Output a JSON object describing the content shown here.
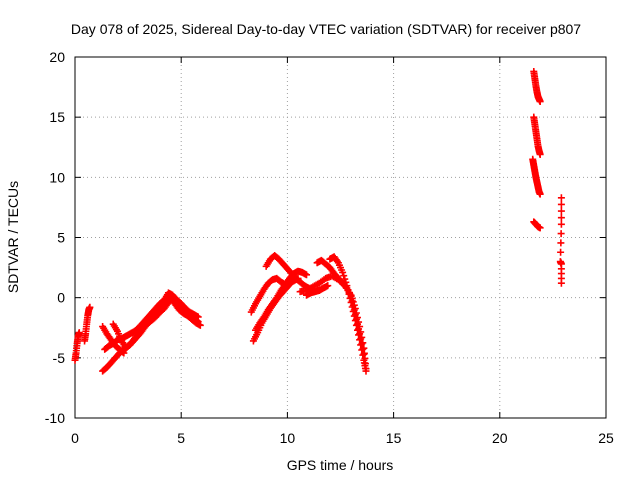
{
  "chart_data": {
    "type": "scatter",
    "title": "Day 078 of 2025, Sidereal Day-to-day VTEC variation (SDTVAR) for receiver p807",
    "xlabel": "GPS time / hours",
    "ylabel": "SDTVAR / TECUs",
    "xlim": [
      0,
      25
    ],
    "ylim": [
      -10,
      20
    ],
    "xticks": [
      "0",
      "5",
      "10",
      "15",
      "20",
      "25"
    ],
    "yticks": [
      "-10",
      "-5",
      "0",
      "5",
      "10",
      "15",
      "20"
    ],
    "xtick_values": [
      0,
      5,
      10,
      15,
      20,
      25
    ],
    "ytick_values": [
      -10,
      -5,
      0,
      5,
      10,
      15,
      20
    ],
    "grid": true,
    "marker_color": "#ff0000",
    "marker": "plus",
    "series": [
      {
        "name": "track-1",
        "points": [
          [
            0.0,
            -5.2
          ],
          [
            0.05,
            -4.6
          ],
          [
            0.1,
            -3.8
          ],
          [
            0.15,
            -3.2
          ],
          [
            0.2,
            -2.9
          ]
        ]
      },
      {
        "name": "track-2",
        "points": [
          [
            0.45,
            -3.6
          ],
          [
            0.5,
            -3.0
          ],
          [
            0.55,
            -2.2
          ],
          [
            0.6,
            -1.5
          ],
          [
            0.65,
            -1.0
          ],
          [
            0.7,
            -0.8
          ]
        ]
      },
      {
        "name": "track-3",
        "points": [
          [
            1.3,
            -6.1
          ],
          [
            1.5,
            -5.8
          ],
          [
            1.7,
            -5.4
          ],
          [
            1.9,
            -5.0
          ],
          [
            2.1,
            -4.6
          ],
          [
            2.3,
            -4.3
          ],
          [
            2.5,
            -4.0
          ],
          [
            2.7,
            -3.7
          ],
          [
            2.9,
            -3.3
          ],
          [
            3.1,
            -2.9
          ],
          [
            3.3,
            -2.4
          ],
          [
            3.5,
            -1.9
          ],
          [
            3.7,
            -1.4
          ],
          [
            3.9,
            -1.0
          ],
          [
            4.1,
            -0.7
          ],
          [
            4.3,
            -0.3
          ],
          [
            4.5,
            0.1
          ],
          [
            4.7,
            -0.5
          ],
          [
            4.9,
            -1.0
          ],
          [
            5.1,
            -1.3
          ],
          [
            5.3,
            -1.5
          ],
          [
            5.5,
            -1.8
          ],
          [
            5.7,
            -2.1
          ],
          [
            5.9,
            -2.3
          ]
        ]
      },
      {
        "name": "track-4",
        "points": [
          [
            1.4,
            -4.3
          ],
          [
            1.6,
            -4.0
          ],
          [
            1.8,
            -3.8
          ],
          [
            2.0,
            -3.5
          ],
          [
            2.2,
            -3.4
          ],
          [
            2.4,
            -3.2
          ],
          [
            2.6,
            -3.0
          ],
          [
            2.8,
            -2.8
          ],
          [
            3.0,
            -2.5
          ],
          [
            3.2,
            -2.1
          ],
          [
            3.4,
            -1.7
          ],
          [
            3.6,
            -1.3
          ],
          [
            3.8,
            -0.9
          ],
          [
            4.0,
            -0.5
          ],
          [
            4.2,
            -0.2
          ],
          [
            4.4,
            0.4
          ],
          [
            4.6,
            0.2
          ],
          [
            4.8,
            -0.2
          ],
          [
            5.0,
            -0.5
          ],
          [
            5.2,
            -0.9
          ],
          [
            5.4,
            -1.2
          ],
          [
            5.6,
            -1.4
          ],
          [
            5.8,
            -1.6
          ]
        ]
      },
      {
        "name": "track-5",
        "points": [
          [
            1.8,
            -2.2
          ],
          [
            2.0,
            -2.8
          ],
          [
            2.2,
            -3.6
          ],
          [
            2.4,
            -4.2
          ],
          [
            2.6,
            -3.9
          ],
          [
            2.8,
            -3.4
          ],
          [
            3.0,
            -2.9
          ],
          [
            3.2,
            -2.5
          ],
          [
            3.4,
            -2.2
          ],
          [
            3.6,
            -1.9
          ],
          [
            3.8,
            -1.6
          ],
          [
            4.0,
            -1.2
          ],
          [
            4.2,
            -0.9
          ],
          [
            4.4,
            -0.4
          ],
          [
            4.6,
            0.0
          ],
          [
            4.8,
            -0.4
          ],
          [
            5.0,
            -0.8
          ],
          [
            5.2,
            -1.1
          ],
          [
            5.4,
            -1.3
          ],
          [
            5.6,
            -1.7
          ],
          [
            5.8,
            -2.0
          ]
        ]
      },
      {
        "name": "track-6",
        "points": [
          [
            1.3,
            -2.4
          ],
          [
            1.5,
            -3.0
          ],
          [
            1.7,
            -3.5
          ],
          [
            1.9,
            -4.0
          ],
          [
            2.1,
            -4.3
          ],
          [
            2.3,
            -4.6
          ]
        ]
      },
      {
        "name": "track-7",
        "points": [
          [
            8.3,
            -1.2
          ],
          [
            8.5,
            -0.5
          ],
          [
            8.7,
            0.1
          ],
          [
            8.9,
            0.7
          ],
          [
            9.1,
            1.2
          ],
          [
            9.3,
            1.5
          ],
          [
            9.5,
            1.6
          ],
          [
            9.7,
            1.3
          ],
          [
            9.9,
            1.1
          ],
          [
            10.1,
            1.2
          ],
          [
            10.3,
            1.4
          ],
          [
            10.5,
            1.6
          ]
        ]
      },
      {
        "name": "track-8",
        "points": [
          [
            8.4,
            -3.6
          ],
          [
            8.6,
            -2.9
          ],
          [
            8.8,
            -2.1
          ],
          [
            9.0,
            -1.5
          ],
          [
            9.2,
            -0.9
          ],
          [
            9.4,
            -0.4
          ],
          [
            9.6,
            0.1
          ],
          [
            9.8,
            0.5
          ],
          [
            10.0,
            0.9
          ],
          [
            10.2,
            1.3
          ],
          [
            10.4,
            1.6
          ]
        ]
      },
      {
        "name": "track-9",
        "points": [
          [
            8.5,
            -2.7
          ],
          [
            8.7,
            -2.1
          ],
          [
            8.9,
            -1.6
          ],
          [
            9.1,
            -1.0
          ],
          [
            9.3,
            -0.5
          ],
          [
            9.5,
            0.0
          ],
          [
            9.7,
            0.6
          ],
          [
            9.9,
            1.1
          ],
          [
            10.1,
            1.6
          ],
          [
            10.3,
            2.0
          ],
          [
            10.5,
            2.2
          ],
          [
            10.7,
            2.1
          ],
          [
            10.9,
            1.9
          ]
        ]
      },
      {
        "name": "track-10",
        "points": [
          [
            9.0,
            2.6
          ],
          [
            9.2,
            3.2
          ],
          [
            9.4,
            3.5
          ],
          [
            9.6,
            3.2
          ],
          [
            9.8,
            2.8
          ],
          [
            10.0,
            2.4
          ],
          [
            10.2,
            2.0
          ],
          [
            10.4,
            1.6
          ],
          [
            10.6,
            1.3
          ],
          [
            10.8,
            1.0
          ],
          [
            11.0,
            0.8
          ]
        ]
      },
      {
        "name": "track-11",
        "points": [
          [
            10.6,
            0.5
          ],
          [
            10.9,
            0.6
          ],
          [
            11.2,
            0.9
          ],
          [
            11.5,
            1.2
          ],
          [
            11.8,
            1.6
          ],
          [
            12.1,
            1.8
          ],
          [
            12.4,
            1.5
          ],
          [
            12.7,
            1.0
          ],
          [
            13.0,
            0.2
          ],
          [
            13.2,
            -0.9
          ],
          [
            13.4,
            -2.4
          ],
          [
            13.6,
            -4.2
          ],
          [
            13.7,
            -5.9
          ]
        ]
      },
      {
        "name": "track-12",
        "points": [
          [
            11.4,
            2.9
          ],
          [
            11.6,
            3.1
          ],
          [
            11.8,
            2.8
          ],
          [
            12.0,
            2.5
          ],
          [
            12.2,
            2.0
          ],
          [
            12.4,
            1.6
          ],
          [
            12.6,
            1.2
          ],
          [
            12.8,
            0.8
          ],
          [
            13.0,
            0.1
          ],
          [
            13.2,
            -1.4
          ],
          [
            13.4,
            -3.0
          ],
          [
            13.6,
            -4.7
          ]
        ]
      },
      {
        "name": "track-13",
        "points": [
          [
            12.0,
            3.2
          ],
          [
            12.2,
            3.4
          ],
          [
            12.4,
            2.9
          ],
          [
            12.6,
            2.1
          ],
          [
            12.8,
            1.0
          ],
          [
            13.0,
            -0.4
          ],
          [
            13.2,
            -1.9
          ],
          [
            13.4,
            -3.5
          ],
          [
            13.6,
            -5.2
          ],
          [
            13.7,
            -6.1
          ]
        ]
      },
      {
        "name": "track-14",
        "points": [
          [
            10.9,
            0.2
          ],
          [
            11.1,
            0.4
          ],
          [
            11.3,
            0.5
          ],
          [
            11.5,
            0.6
          ],
          [
            11.7,
            0.8
          ],
          [
            11.9,
            1.0
          ]
        ]
      },
      {
        "name": "track-15",
        "points": [
          [
            21.6,
            18.8
          ],
          [
            21.65,
            18.2
          ],
          [
            21.7,
            17.6
          ],
          [
            21.75,
            17.1
          ],
          [
            21.8,
            16.7
          ],
          [
            21.85,
            16.5
          ],
          [
            21.9,
            16.3
          ]
        ]
      },
      {
        "name": "track-16",
        "points": [
          [
            21.6,
            15.0
          ],
          [
            21.65,
            14.4
          ],
          [
            21.7,
            13.8
          ],
          [
            21.75,
            13.2
          ],
          [
            21.8,
            12.6
          ],
          [
            21.85,
            12.2
          ],
          [
            21.9,
            11.9
          ]
        ]
      },
      {
        "name": "track-17",
        "points": [
          [
            21.55,
            11.5
          ],
          [
            21.6,
            11.0
          ],
          [
            21.65,
            10.5
          ],
          [
            21.7,
            10.0
          ],
          [
            21.75,
            9.6
          ],
          [
            21.8,
            9.2
          ],
          [
            21.85,
            8.8
          ],
          [
            21.9,
            8.6
          ]
        ]
      },
      {
        "name": "track-18",
        "points": [
          [
            21.6,
            6.3
          ],
          [
            21.7,
            6.1
          ],
          [
            21.8,
            5.9
          ],
          [
            21.9,
            5.8
          ]
        ]
      },
      {
        "name": "track-19",
        "points": [
          [
            22.9,
            8.3
          ],
          [
            22.9,
            6.1
          ],
          [
            22.85,
            3.0
          ],
          [
            22.9,
            2.8
          ],
          [
            22.9,
            1.2
          ]
        ]
      }
    ]
  }
}
